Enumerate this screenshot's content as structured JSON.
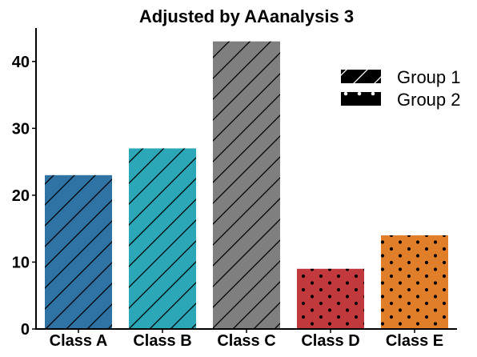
{
  "chart_data": {
    "type": "bar",
    "title": "Adjusted by AAanalysis 3",
    "xlabel": "",
    "ylabel": "",
    "categories": [
      "Class A",
      "Class B",
      "Class C",
      "Class D",
      "Class E"
    ],
    "values": [
      23,
      27,
      43,
      9,
      14
    ],
    "groups": [
      1,
      1,
      1,
      2,
      2
    ],
    "bar_colors": [
      "#2f72a4",
      "#2ba7b7",
      "#7f7f7f",
      "#c2393d",
      "#e07e2a"
    ],
    "ylim": [
      0,
      45
    ],
    "yticks": [
      0,
      10,
      20,
      30,
      40
    ],
    "grid": false,
    "legend": {
      "placement": "top-right",
      "entries": [
        {
          "label": "Group 1",
          "pattern": "hatch-diagonal"
        },
        {
          "label": "Group 2",
          "pattern": "dots"
        }
      ]
    }
  }
}
